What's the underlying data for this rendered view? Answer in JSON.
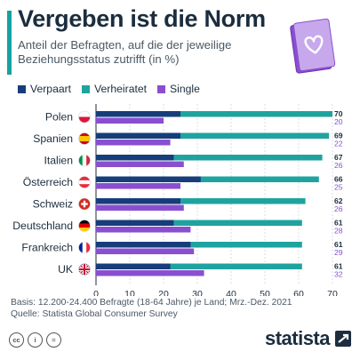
{
  "header": {
    "title": "Vergeben ist die Norm",
    "subtitle": "Anteil der Befragten, auf die der jeweilige Beziehungsstatus zutrifft (in %)"
  },
  "legend": [
    {
      "label": "Verpaart",
      "color": "#173d7a"
    },
    {
      "label": "Verheiratet",
      "color": "#1fa39f"
    },
    {
      "label": "Single",
      "color": "#8a4fd0"
    }
  ],
  "chart_data": {
    "type": "bar",
    "orientation": "horizontal",
    "categories": [
      "Polen",
      "Spanien",
      "Italien",
      "Österreich",
      "Schweiz",
      "Deutschland",
      "Frankreich",
      "UK"
    ],
    "flags": [
      "pl",
      "es",
      "it",
      "at",
      "ch",
      "de",
      "fr",
      "uk"
    ],
    "series": [
      {
        "name": "Verpaart",
        "values": [
          25,
          25,
          23,
          31,
          25,
          23,
          28,
          22
        ],
        "color": "#173d7a"
      },
      {
        "name": "Verheiratet",
        "values": [
          70,
          69,
          67,
          66,
          62,
          61,
          61,
          61
        ],
        "color": "#1fa39f"
      },
      {
        "name": "Single",
        "values": [
          20,
          22,
          26,
          25,
          26,
          28,
          29,
          32
        ],
        "color": "#8a4fd0"
      }
    ],
    "xlim": [
      0,
      70
    ],
    "xticks": [
      0,
      10,
      20,
      30,
      40,
      50,
      60,
      70
    ],
    "grid": true,
    "legend_position": "top-left",
    "value_labels_shown_for": [
      "Verheiratet",
      "Single"
    ]
  },
  "footer": {
    "basis": "Basis: 12.200-24.400 Befragte (18-64 Jahre) je Land; Mrz.-Dez. 2021",
    "source": "Quelle: Statista Global Consumer Survey",
    "brand": "statista"
  },
  "license_icons": [
    "cc",
    "i",
    "="
  ]
}
